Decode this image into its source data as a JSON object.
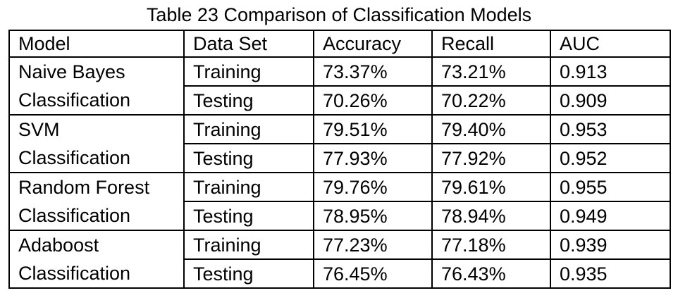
{
  "caption": "Table 23 Comparison of Classification Models",
  "table": {
    "headers": [
      "Model",
      "Data Set",
      "Accuracy",
      "Recall",
      "AUC"
    ],
    "groups": [
      {
        "model_line1": "Naive Bayes",
        "model_line2": "Classification",
        "rows": [
          {
            "data_set": "Training",
            "accuracy": "73.37%",
            "recall": "73.21%",
            "auc": "0.913"
          },
          {
            "data_set": "Testing",
            "accuracy": "70.26%",
            "recall": "70.22%",
            "auc": "0.909"
          }
        ]
      },
      {
        "model_line1": "SVM",
        "model_line2": "Classification",
        "rows": [
          {
            "data_set": "Training",
            "accuracy": "79.51%",
            "recall": "79.40%",
            "auc": "0.953"
          },
          {
            "data_set": "Testing",
            "accuracy": "77.93%",
            "recall": "77.92%",
            "auc": "0.952"
          }
        ]
      },
      {
        "model_line1": "Random Forest",
        "model_line2": "Classification",
        "rows": [
          {
            "data_set": "Training",
            "accuracy": "79.76%",
            "recall": "79.61%",
            "auc": "0.955"
          },
          {
            "data_set": "Testing",
            "accuracy": "78.95%",
            "recall": "78.94%",
            "auc": "0.949"
          }
        ]
      },
      {
        "model_line1": "Adaboost",
        "model_line2": "Classification",
        "rows": [
          {
            "data_set": "Training",
            "accuracy": "77.23%",
            "recall": "77.18%",
            "auc": "0.939"
          },
          {
            "data_set": "Testing",
            "accuracy": "76.45%",
            "recall": "76.43%",
            "auc": "0.935"
          }
        ]
      }
    ]
  }
}
